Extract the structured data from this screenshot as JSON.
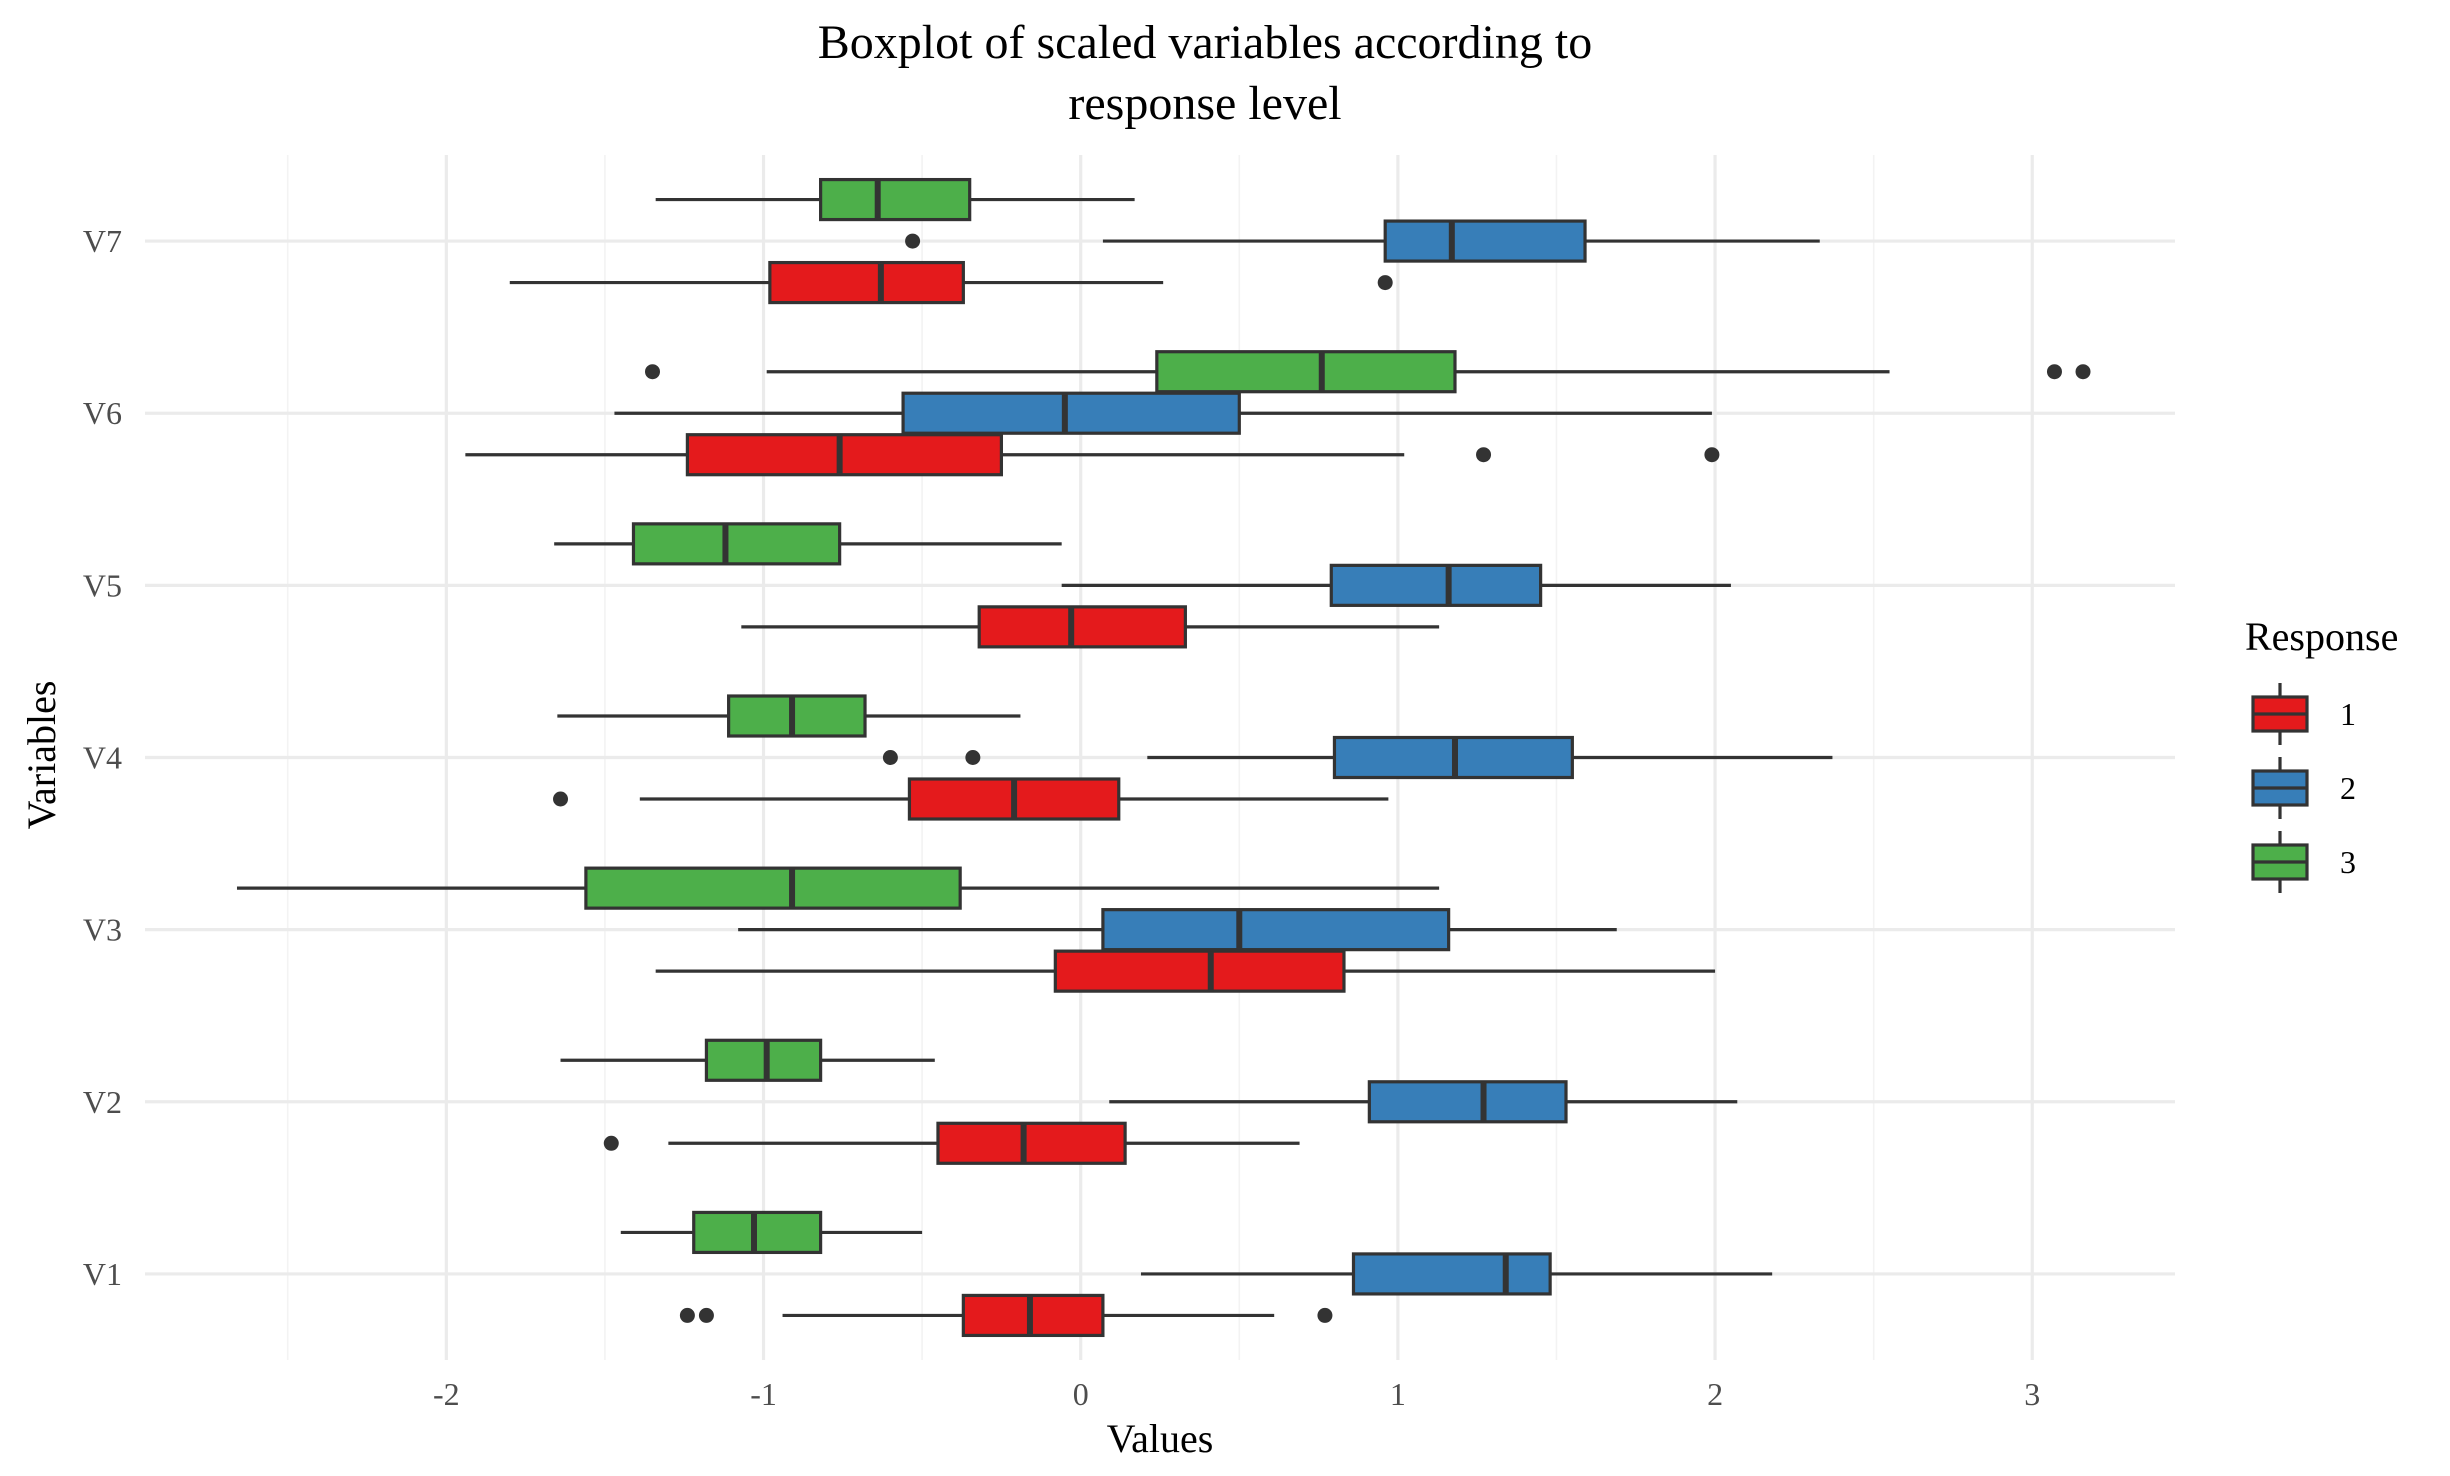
{
  "chart_data": {
    "type": "boxplot",
    "orientation": "horizontal",
    "title_lines": [
      "Boxplot of scaled variables according to",
      "response level"
    ],
    "xlabel": "Values",
    "ylabel": "Variables",
    "xlim": [
      -2.95,
      3.45
    ],
    "x_ticks": [
      -2,
      -1,
      0,
      1,
      2,
      3
    ],
    "x_tick_labels": [
      "-2",
      "-1",
      "0",
      "1",
      "2",
      "3"
    ],
    "categories": [
      "V1",
      "V2",
      "V3",
      "V4",
      "V5",
      "V6",
      "V7"
    ],
    "grid": true,
    "legend": {
      "title": "Response",
      "position": "right",
      "entries": [
        {
          "label": "1",
          "color": "#E41A1C"
        },
        {
          "label": "2",
          "color": "#377EB8"
        },
        {
          "label": "3",
          "color": "#4DAF4A"
        }
      ]
    },
    "series": [
      {
        "name": "1",
        "color": "#E41A1C",
        "boxes": [
          {
            "category": "V1",
            "whisker_low": -0.94,
            "q1": -0.37,
            "median": -0.16,
            "q3": 0.07,
            "whisker_high": 0.61,
            "outliers": [
              -1.24,
              -1.18,
              0.77
            ]
          },
          {
            "category": "V2",
            "whisker_low": -1.3,
            "q1": -0.45,
            "median": -0.18,
            "q3": 0.14,
            "whisker_high": 0.69,
            "outliers": [
              -1.48
            ]
          },
          {
            "category": "V3",
            "whisker_low": -1.34,
            "q1": -0.08,
            "median": 0.41,
            "q3": 0.83,
            "whisker_high": 2.0,
            "outliers": []
          },
          {
            "category": "V4",
            "whisker_low": -1.39,
            "q1": -0.54,
            "median": -0.21,
            "q3": 0.12,
            "whisker_high": 0.97,
            "outliers": [
              -1.64
            ]
          },
          {
            "category": "V5",
            "whisker_low": -1.07,
            "q1": -0.32,
            "median": -0.03,
            "q3": 0.33,
            "whisker_high": 1.13,
            "outliers": []
          },
          {
            "category": "V6",
            "whisker_low": -1.94,
            "q1": -1.24,
            "median": -0.76,
            "q3": -0.25,
            "whisker_high": 1.02,
            "outliers": [
              1.27,
              1.99
            ]
          },
          {
            "category": "V7",
            "whisker_low": -1.8,
            "q1": -0.98,
            "median": -0.63,
            "q3": -0.37,
            "whisker_high": 0.26,
            "outliers": [
              0.96
            ]
          }
        ]
      },
      {
        "name": "2",
        "color": "#377EB8",
        "boxes": [
          {
            "category": "V1",
            "whisker_low": 0.19,
            "q1": 0.86,
            "median": 1.34,
            "q3": 1.48,
            "whisker_high": 2.18,
            "outliers": []
          },
          {
            "category": "V2",
            "whisker_low": 0.09,
            "q1": 0.91,
            "median": 1.27,
            "q3": 1.53,
            "whisker_high": 2.07,
            "outliers": []
          },
          {
            "category": "V3",
            "whisker_low": -1.08,
            "q1": 0.07,
            "median": 0.5,
            "q3": 1.16,
            "whisker_high": 1.69,
            "outliers": []
          },
          {
            "category": "V4",
            "whisker_low": 0.21,
            "q1": 0.8,
            "median": 1.18,
            "q3": 1.55,
            "whisker_high": 2.37,
            "outliers": [
              -0.6,
              -0.34
            ]
          },
          {
            "category": "V5",
            "whisker_low": -0.06,
            "q1": 0.79,
            "median": 1.16,
            "q3": 1.45,
            "whisker_high": 2.05,
            "outliers": []
          },
          {
            "category": "V6",
            "whisker_low": -1.47,
            "q1": -0.56,
            "median": -0.05,
            "q3": 0.5,
            "whisker_high": 1.99,
            "outliers": []
          },
          {
            "category": "V7",
            "whisker_low": 0.07,
            "q1": 0.96,
            "median": 1.17,
            "q3": 1.59,
            "whisker_high": 2.33,
            "outliers": [
              -0.53
            ]
          }
        ]
      },
      {
        "name": "3",
        "color": "#4DAF4A",
        "boxes": [
          {
            "category": "V1",
            "whisker_low": -1.45,
            "q1": -1.22,
            "median": -1.03,
            "q3": -0.82,
            "whisker_high": -0.5,
            "outliers": []
          },
          {
            "category": "V2",
            "whisker_low": -1.64,
            "q1": -1.18,
            "median": -0.99,
            "q3": -0.82,
            "whisker_high": -0.46,
            "outliers": []
          },
          {
            "category": "V3",
            "whisker_low": -2.66,
            "q1": -1.56,
            "median": -0.91,
            "q3": -0.38,
            "whisker_high": 1.13,
            "outliers": []
          },
          {
            "category": "V4",
            "whisker_low": -1.65,
            "q1": -1.11,
            "median": -0.91,
            "q3": -0.68,
            "whisker_high": -0.19,
            "outliers": []
          },
          {
            "category": "V5",
            "whisker_low": -1.66,
            "q1": -1.41,
            "median": -1.12,
            "q3": -0.76,
            "whisker_high": -0.06,
            "outliers": []
          },
          {
            "category": "V6",
            "whisker_low": -0.99,
            "q1": 0.24,
            "median": 0.76,
            "q3": 1.18,
            "whisker_high": 2.55,
            "outliers": [
              -1.35,
              3.07,
              3.16
            ]
          },
          {
            "category": "V7",
            "whisker_low": -1.34,
            "q1": -0.82,
            "median": -0.64,
            "q3": -0.35,
            "whisker_high": 0.17,
            "outliers": []
          }
        ]
      }
    ]
  }
}
